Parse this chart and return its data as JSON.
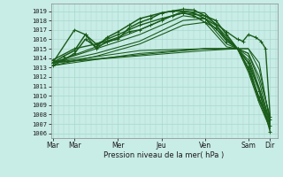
{
  "xlabel": "Pression niveau de la mer( hPa )",
  "bg_color": "#c8ece6",
  "grid_color": "#a8d8cc",
  "line_color": "#1a5c1a",
  "ylim": [
    1005.5,
    1019.8
  ],
  "yticks": [
    1006,
    1007,
    1008,
    1009,
    1010,
    1011,
    1012,
    1013,
    1014,
    1015,
    1016,
    1017,
    1018,
    1019
  ],
  "xtick_labels": [
    "Mar",
    "Mar",
    "Mer",
    "Jeu",
    "Ven",
    "Sam",
    "Dir"
  ],
  "xtick_positions": [
    0,
    24,
    72,
    120,
    168,
    216,
    240
  ],
  "xlim": [
    -2,
    248
  ],
  "series": [
    {
      "x": [
        0,
        12,
        24,
        36,
        48,
        60,
        72,
        84,
        96,
        108,
        120,
        132,
        144,
        156,
        168,
        180,
        192,
        204,
        216,
        228,
        240
      ],
      "y": [
        1013.5,
        1014.2,
        1014.8,
        1016.5,
        1015.5,
        1015.8,
        1016.0,
        1017.2,
        1017.8,
        1018.2,
        1018.8,
        1019.0,
        1019.2,
        1019.1,
        1018.5,
        1018.0,
        1016.5,
        1015.0,
        1013.5,
        1010.5,
        1006.2
      ],
      "marker": true,
      "lw": 1.1
    },
    {
      "x": [
        0,
        12,
        24,
        36,
        48,
        60,
        72,
        84,
        96,
        108,
        120,
        132,
        144,
        156,
        168,
        180,
        192,
        204,
        216,
        228,
        240
      ],
      "y": [
        1013.2,
        1013.8,
        1014.5,
        1016.0,
        1015.2,
        1016.2,
        1016.8,
        1017.5,
        1018.2,
        1018.5,
        1018.8,
        1019.0,
        1019.0,
        1018.8,
        1018.2,
        1017.5,
        1016.0,
        1015.0,
        1012.8,
        1009.5,
        1007.5
      ],
      "marker": true,
      "lw": 1.1
    },
    {
      "x": [
        0,
        24,
        48,
        72,
        96,
        120,
        144,
        168,
        192,
        204,
        210,
        216,
        224,
        230,
        235,
        240
      ],
      "y": [
        1013.8,
        1015.0,
        1015.5,
        1016.5,
        1017.5,
        1018.2,
        1018.8,
        1018.5,
        1016.8,
        1016.0,
        1015.8,
        1016.5,
        1016.2,
        1015.8,
        1015.0,
        1007.8
      ],
      "marker": true,
      "lw": 1.0
    },
    {
      "x": [
        0,
        24,
        36,
        48,
        60,
        72,
        84,
        96,
        108,
        120,
        132,
        144,
        156,
        168,
        180,
        192,
        204,
        216,
        228,
        240
      ],
      "y": [
        1013.5,
        1017.0,
        1016.5,
        1015.0,
        1015.8,
        1016.2,
        1016.8,
        1017.0,
        1017.5,
        1018.0,
        1018.5,
        1018.8,
        1018.5,
        1017.8,
        1017.2,
        1015.8,
        1015.0,
        1013.0,
        1009.8,
        1006.8
      ],
      "marker": true,
      "lw": 1.0
    },
    {
      "x": [
        0,
        48,
        96,
        144,
        168,
        204,
        216,
        228,
        240
      ],
      "y": [
        1013.5,
        1015.0,
        1016.5,
        1018.5,
        1018.2,
        1015.0,
        1015.0,
        1013.5,
        1007.0
      ],
      "marker": false,
      "lw": 0.8
    },
    {
      "x": [
        0,
        48,
        96,
        144,
        168,
        204,
        216,
        228,
        240
      ],
      "y": [
        1013.5,
        1015.2,
        1017.0,
        1019.0,
        1018.8,
        1015.0,
        1014.5,
        1012.0,
        1007.8
      ],
      "marker": false,
      "lw": 0.8
    },
    {
      "x": [
        0,
        48,
        96,
        144,
        168,
        192,
        204,
        216,
        228,
        240
      ],
      "y": [
        1013.5,
        1014.5,
        1015.8,
        1018.0,
        1018.2,
        1015.5,
        1015.0,
        1013.8,
        1010.8,
        1007.2
      ],
      "marker": false,
      "lw": 0.8
    },
    {
      "x": [
        0,
        48,
        96,
        144,
        168,
        192,
        204,
        216,
        228,
        240
      ],
      "y": [
        1013.2,
        1014.2,
        1015.5,
        1017.5,
        1017.8,
        1015.2,
        1015.0,
        1012.5,
        1009.2,
        1006.5
      ],
      "marker": false,
      "lw": 0.8
    },
    {
      "x": [
        0,
        96,
        168,
        204,
        216,
        228,
        240
      ],
      "y": [
        1013.5,
        1014.8,
        1015.0,
        1015.0,
        1014.2,
        1010.8,
        1006.8
      ],
      "marker": false,
      "lw": 0.75
    },
    {
      "x": [
        0,
        96,
        168,
        204,
        216,
        228,
        240
      ],
      "y": [
        1013.2,
        1014.5,
        1015.0,
        1015.0,
        1013.5,
        1009.5,
        1006.5
      ],
      "marker": false,
      "lw": 0.75
    },
    {
      "x": [
        0,
        168,
        204,
        216,
        228,
        240
      ],
      "y": [
        1013.5,
        1015.0,
        1015.0,
        1015.0,
        1012.8,
        1007.5
      ],
      "marker": false,
      "lw": 0.75
    },
    {
      "x": [
        0,
        168,
        204,
        216,
        228,
        240
      ],
      "y": [
        1013.5,
        1014.8,
        1015.0,
        1014.5,
        1011.5,
        1007.0
      ],
      "marker": false,
      "lw": 0.75
    }
  ]
}
